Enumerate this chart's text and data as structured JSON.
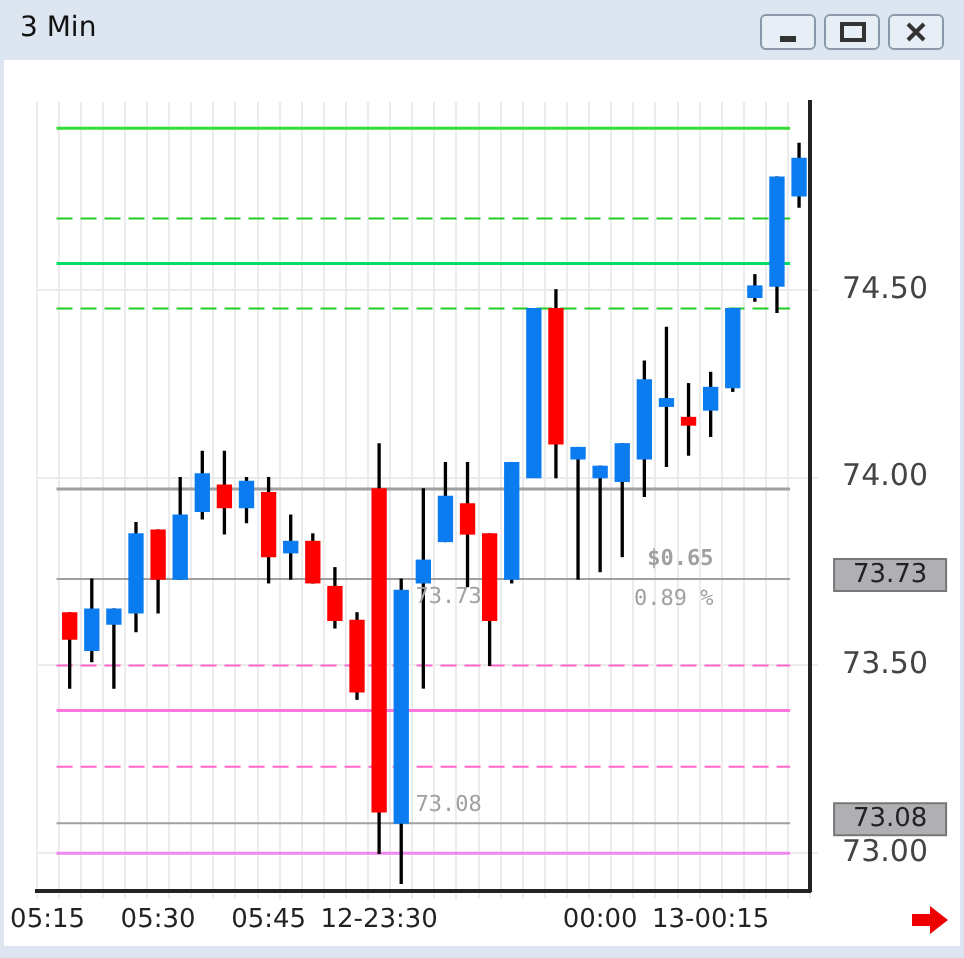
{
  "chart_data": {
    "type": "candlestick",
    "title": "3 Min",
    "categories": [
      "05:15",
      null,
      null,
      null,
      null,
      "05:30",
      null,
      null,
      null,
      null,
      "05:45",
      null,
      null,
      null,
      null,
      "12-23:30",
      null,
      null,
      null,
      null,
      null,
      null,
      null,
      null,
      null,
      "00:00",
      null,
      null,
      null,
      null,
      "13-00:15",
      null,
      null,
      null,
      null
    ],
    "ohlc": [
      null,
      [
        73.64,
        73.64,
        73.44,
        73.57
      ],
      [
        73.54,
        73.73,
        73.51,
        73.65
      ],
      [
        73.61,
        73.65,
        73.44,
        73.65
      ],
      [
        73.64,
        73.88,
        73.59,
        73.85
      ],
      [
        73.86,
        73.86,
        73.64,
        73.73
      ],
      [
        73.73,
        74.0,
        73.73,
        73.9
      ],
      [
        73.91,
        74.07,
        73.89,
        74.01
      ],
      [
        73.98,
        74.07,
        73.85,
        73.92
      ],
      [
        73.92,
        74.0,
        73.88,
        73.99
      ],
      [
        73.96,
        74.0,
        73.72,
        73.79
      ],
      [
        73.8,
        73.9,
        73.73,
        73.83
      ],
      [
        73.83,
        73.85,
        73.72,
        73.72
      ],
      [
        73.71,
        73.76,
        73.6,
        73.62
      ],
      [
        73.62,
        73.64,
        73.41,
        73.43
      ],
      [
        73.97,
        74.09,
        73.0,
        73.11
      ],
      [
        73.08,
        73.73,
        72.92,
        73.7
      ],
      [
        73.72,
        73.97,
        73.44,
        73.78
      ],
      [
        73.83,
        74.04,
        73.83,
        73.95
      ],
      [
        73.93,
        74.04,
        73.71,
        73.85
      ],
      [
        73.85,
        73.85,
        73.5,
        73.62
      ],
      [
        73.73,
        74.04,
        73.72,
        74.04
      ],
      [
        74.0,
        74.45,
        74.0,
        74.45
      ],
      [
        74.45,
        74.5,
        74.0,
        74.09
      ],
      [
        74.05,
        74.08,
        73.73,
        74.08
      ],
      [
        74.0,
        74.03,
        73.75,
        74.03
      ],
      [
        73.99,
        74.09,
        73.79,
        74.09
      ],
      [
        74.05,
        74.31,
        73.95,
        74.26
      ],
      [
        74.19,
        74.4,
        74.03,
        74.21
      ],
      [
        74.16,
        74.25,
        74.06,
        74.14
      ],
      [
        74.18,
        74.28,
        74.11,
        74.24
      ],
      [
        74.24,
        74.45,
        74.23,
        74.45
      ],
      [
        74.48,
        74.54,
        74.47,
        74.51
      ],
      [
        74.51,
        74.8,
        74.44,
        74.8
      ],
      [
        74.75,
        74.89,
        74.72,
        74.85
      ]
    ],
    "colors": [
      null,
      "#ff0000",
      "#0a7cf0",
      "#0a7cf0",
      "#0a7cf0",
      "#ff0000",
      "#0a7cf0",
      "#0a7cf0",
      "#ff0000",
      "#0a7cf0",
      "#ff0000",
      "#0a7cf0",
      "#ff0000",
      "#ff0000",
      "#ff0000",
      "#ff0000",
      "#0a7cf0",
      "#0a7cf0",
      "#0a7cf0",
      "#ff0000",
      "#ff0000",
      "#0a7cf0",
      "#0a7cf0",
      "#ff0000",
      "#0a7cf0",
      "#0a7cf0",
      "#0a7cf0",
      "#0a7cf0",
      "#0a7cf0",
      "#ff0000",
      "#0a7cf0",
      "#0a7cf0",
      "#0a7cf0",
      "#0a7cf0",
      "#0a7cf0"
    ],
    "ylim": [
      72.9,
      75.0
    ],
    "yticks": [
      {
        "value": 73.0,
        "label": "73.00"
      },
      {
        "value": 73.5,
        "label": "73.50"
      },
      {
        "value": 74.0,
        "label": "74.00"
      },
      {
        "value": 74.5,
        "label": "74.50"
      }
    ],
    "grid": true,
    "legend": false,
    "ref_lines": [
      {
        "axis": "y",
        "value": 74.93,
        "color": "#33dd33",
        "line_style": "solid"
      },
      {
        "axis": "y",
        "value": 74.69,
        "color": "#22cc22",
        "line_style": "dashed"
      },
      {
        "axis": "y",
        "value": 74.57,
        "color": "#00dd66",
        "line_style": "solid"
      },
      {
        "axis": "y",
        "value": 74.45,
        "color": "#22cc22",
        "line_style": "dashed"
      },
      {
        "axis": "y",
        "value": 73.97,
        "color": "#a0a0a0",
        "line_style": "solid"
      },
      {
        "axis": "y",
        "value": 73.73,
        "color": "#a0a0a0",
        "line_style": "solid",
        "label": "73.73"
      },
      {
        "axis": "y",
        "value": 73.5,
        "color": "#ff66cc",
        "line_style": "dashed"
      },
      {
        "axis": "y",
        "value": 73.38,
        "color": "#ff77dd",
        "line_style": "solid"
      },
      {
        "axis": "y",
        "value": 73.23,
        "color": "#ff66cc",
        "line_style": "dashed"
      },
      {
        "axis": "y",
        "value": 73.08,
        "color": "#a0a0a0",
        "line_style": "solid",
        "label": "73.08"
      },
      {
        "axis": "y",
        "value": 73.0,
        "color": "#ee88ee",
        "line_style": "solid"
      }
    ],
    "annotations": [
      {
        "text": "73.73",
        "y": 73.73
      },
      {
        "text": "73.08",
        "y": 73.08
      },
      {
        "text": "$0.65",
        "y": 73.73
      },
      {
        "text": "0.89 %",
        "y": 73.73
      }
    ]
  }
}
